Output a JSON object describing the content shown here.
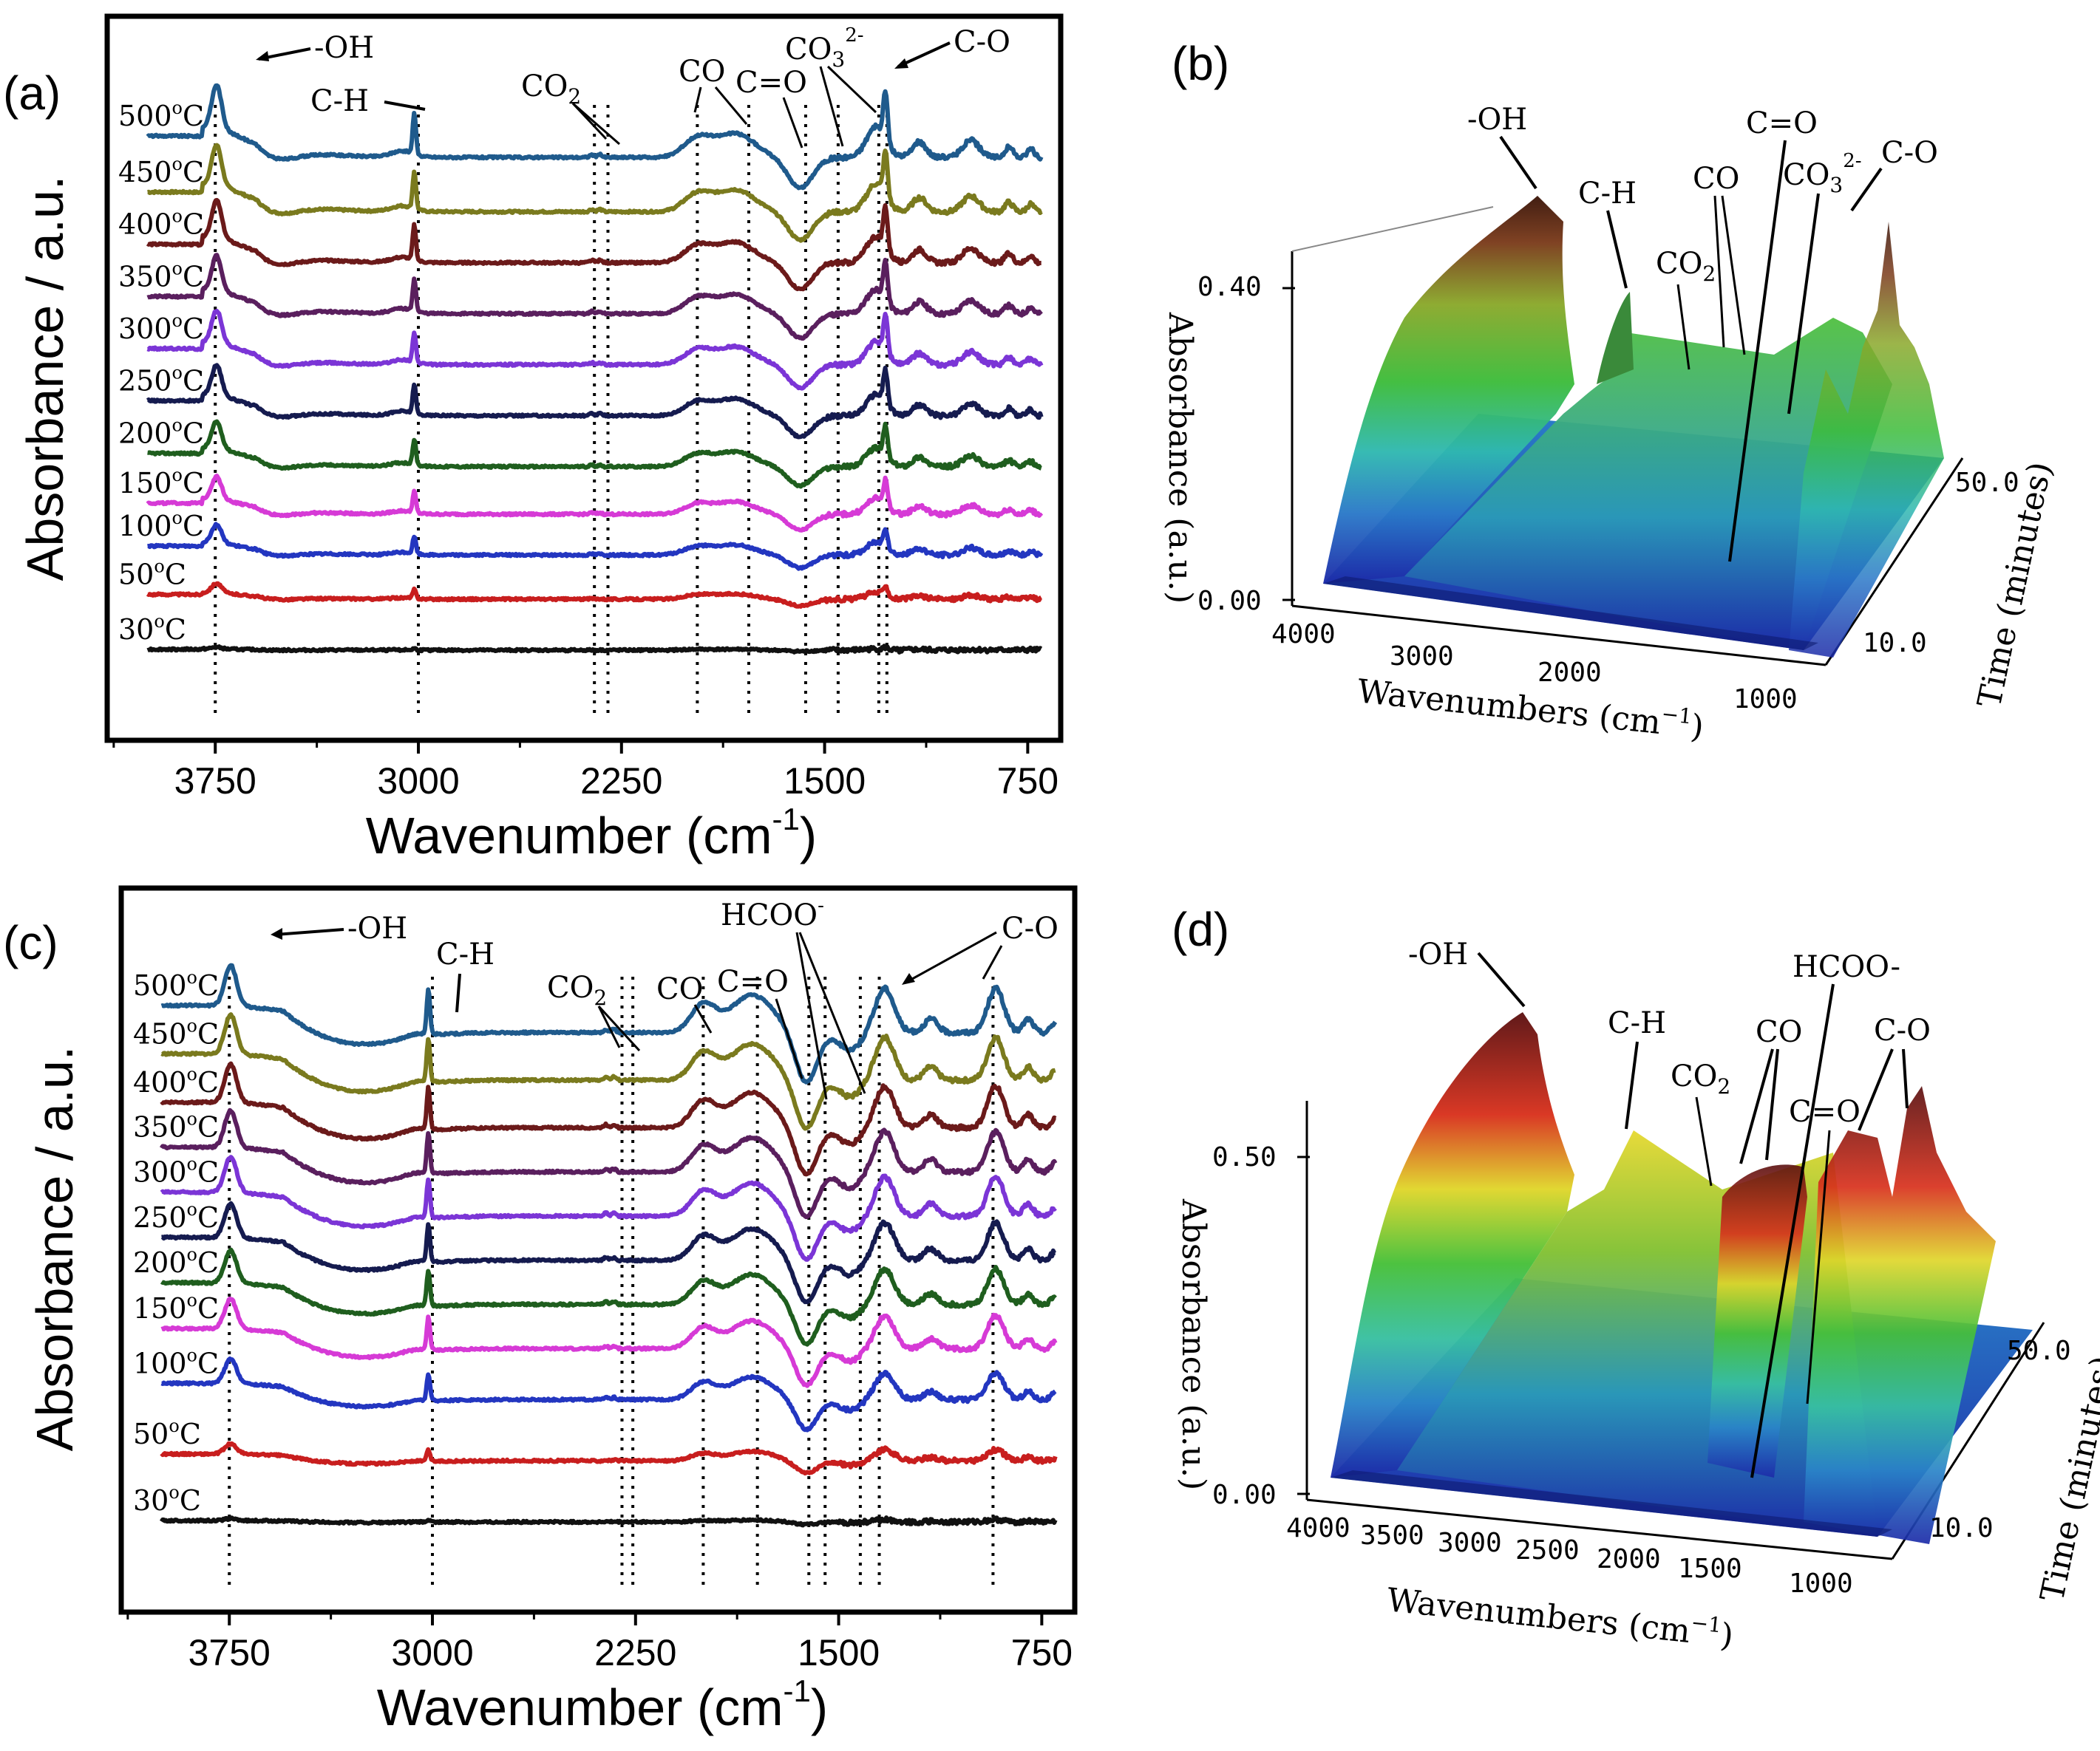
{
  "figure": {
    "panel_labels": [
      "(a)",
      "(b)",
      "(c)",
      "(d)"
    ],
    "colors": {
      "500°C": "#1f5a8c",
      "450°C": "#7a7a1e",
      "400°C": "#6b1a1a",
      "350°C": "#5a1f5e",
      "300°C": "#7b35d6",
      "250°C": "#151b4f",
      "200°C": "#1f5e1e",
      "150°C": "#d63ad6",
      "100°C": "#2336c0",
      "50°C": "#c81e1e",
      "30°C": "#111111"
    }
  },
  "chart_data": [
    {
      "panel": "(a)",
      "type": "line",
      "xlabel": "Wavenumber (cm",
      "xlabel_sup": "-1",
      "xlabel_close": ")",
      "ylabel": "Absorbance / a.u.",
      "xlim": [
        4100,
        650
      ],
      "xticks": [
        "3750",
        "3000",
        "2250",
        "1500",
        "750"
      ],
      "xtick_values": [
        3750,
        3000,
        2250,
        1500,
        750
      ],
      "series_order_top_to_bottom": [
        "500°C",
        "450°C",
        "400°C",
        "350°C",
        "300°C",
        "250°C",
        "200°C",
        "150°C",
        "100°C",
        "50°C",
        "30°C"
      ],
      "offsets": [
        16.5,
        14.9,
        13.4,
        11.9,
        10.4,
        8.9,
        7.4,
        6.0,
        4.8,
        3.5,
        2.0
      ],
      "peak_scale": [
        1.0,
        0.92,
        0.86,
        0.8,
        0.75,
        0.7,
        0.62,
        0.52,
        0.42,
        0.22,
        0.04
      ],
      "ylim": [
        0,
        20
      ],
      "guide_lines": [
        3750,
        3000,
        2350,
        2300,
        1970,
        1780,
        1570,
        1450,
        1300,
        1270
      ],
      "annotations": [
        "-OH",
        "C-H",
        "CO",
        "CO",
        "C=O",
        "CO",
        "2-",
        "C-O"
      ],
      "co_subscript": "2",
      "co3_subscript": "3"
    },
    {
      "panel": "(b)",
      "type": "area",
      "xlabel": "Wavenumbers (cm",
      "xlabel_sup": "−1",
      "xlabel_close": ")",
      "ylabel": "Absorbance (a.u.)",
      "zlabel": "Time (minutes)",
      "yticks": [
        "0.00",
        "0.40"
      ],
      "xticks": [
        "4000",
        "3000",
        "2000",
        "1000"
      ],
      "zticks": [
        "10.0",
        "50.0"
      ],
      "annotations": [
        "-OH",
        "C-H",
        "CO",
        "CO",
        "C=O",
        "CO",
        "2-",
        "C-O"
      ],
      "co_subscript": "2",
      "co3_subscript": "3"
    },
    {
      "panel": "(c)",
      "type": "line",
      "xlabel": "Wavenumber (cm",
      "xlabel_sup": "-1",
      "xlabel_close": ")",
      "ylabel": "Absorbance / a.u.",
      "xlim": [
        4100,
        650
      ],
      "xticks": [
        "3750",
        "3000",
        "2250",
        "1500",
        "750"
      ],
      "xtick_values": [
        3750,
        3000,
        2250,
        1500,
        750
      ],
      "series_order_top_to_bottom": [
        "500°C",
        "450°C",
        "400°C",
        "350°C",
        "300°C",
        "250°C",
        "200°C",
        "150°C",
        "100°C",
        "50°C",
        "30°C"
      ],
      "offsets": [
        16.4,
        15.0,
        13.6,
        12.3,
        11.0,
        9.7,
        8.4,
        7.1,
        5.6,
        3.8,
        2.0
      ],
      "peak_scale": [
        1.0,
        0.97,
        0.94,
        0.91,
        0.88,
        0.84,
        0.8,
        0.74,
        0.6,
        0.25,
        0.05
      ],
      "ylim": [
        0,
        20
      ],
      "guide_lines": [
        3750,
        3000,
        2300,
        2260,
        2000,
        1800,
        1610,
        1550,
        1420,
        1350,
        930
      ],
      "annotations": [
        "-OH",
        "C-H",
        "CO",
        "CO",
        "C=O",
        "HCOO",
        "-",
        "C-O"
      ],
      "co_subscript": "2"
    },
    {
      "panel": "(d)",
      "type": "area",
      "xlabel": "Wavenumbers (cm",
      "xlabel_sup": "−1",
      "xlabel_close": ")",
      "ylabel": "Absorbance (a.u.)",
      "zlabel": "Time (minutes)",
      "yticks": [
        "0.00",
        "0.50"
      ],
      "xticks": [
        "4000",
        "3500",
        "3000",
        "2500",
        "2000",
        "1500",
        "1000"
      ],
      "zticks": [
        "10.0",
        "50.0"
      ],
      "annotations": [
        "-OH",
        "C-H",
        "CO",
        "CO",
        "HCOO-",
        "C=O",
        "C-O"
      ],
      "co_subscript": "2"
    }
  ],
  "temperature_labels": [
    "500",
    "450",
    "400",
    "350",
    "300",
    "250",
    "200",
    "150",
    "100",
    "50",
    "30"
  ],
  "degree_suffix": "o",
  "celsius": "C"
}
